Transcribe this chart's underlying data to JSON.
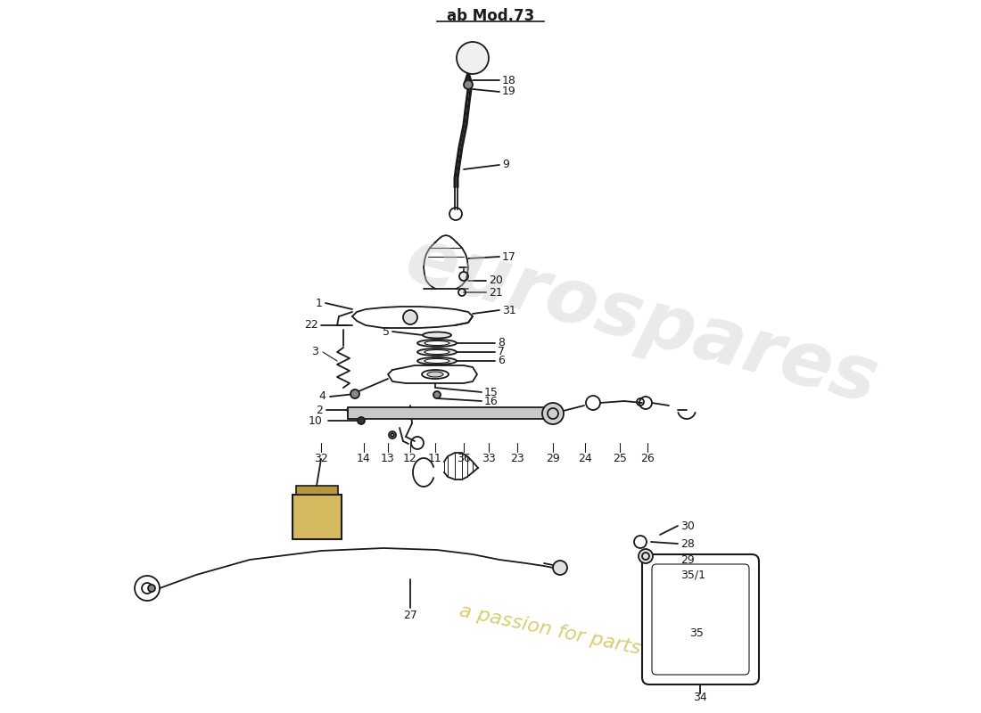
{
  "title": "ab Mod.73",
  "background_color": "#ffffff",
  "line_color": "#1a1a1a",
  "wm1_color": "#cccccc",
  "wm2_color": "#c8b83a",
  "figsize": [
    11.0,
    8.0
  ],
  "dpi": 100,
  "xlim": [
    0,
    1100
  ],
  "ylim": [
    0,
    800
  ]
}
